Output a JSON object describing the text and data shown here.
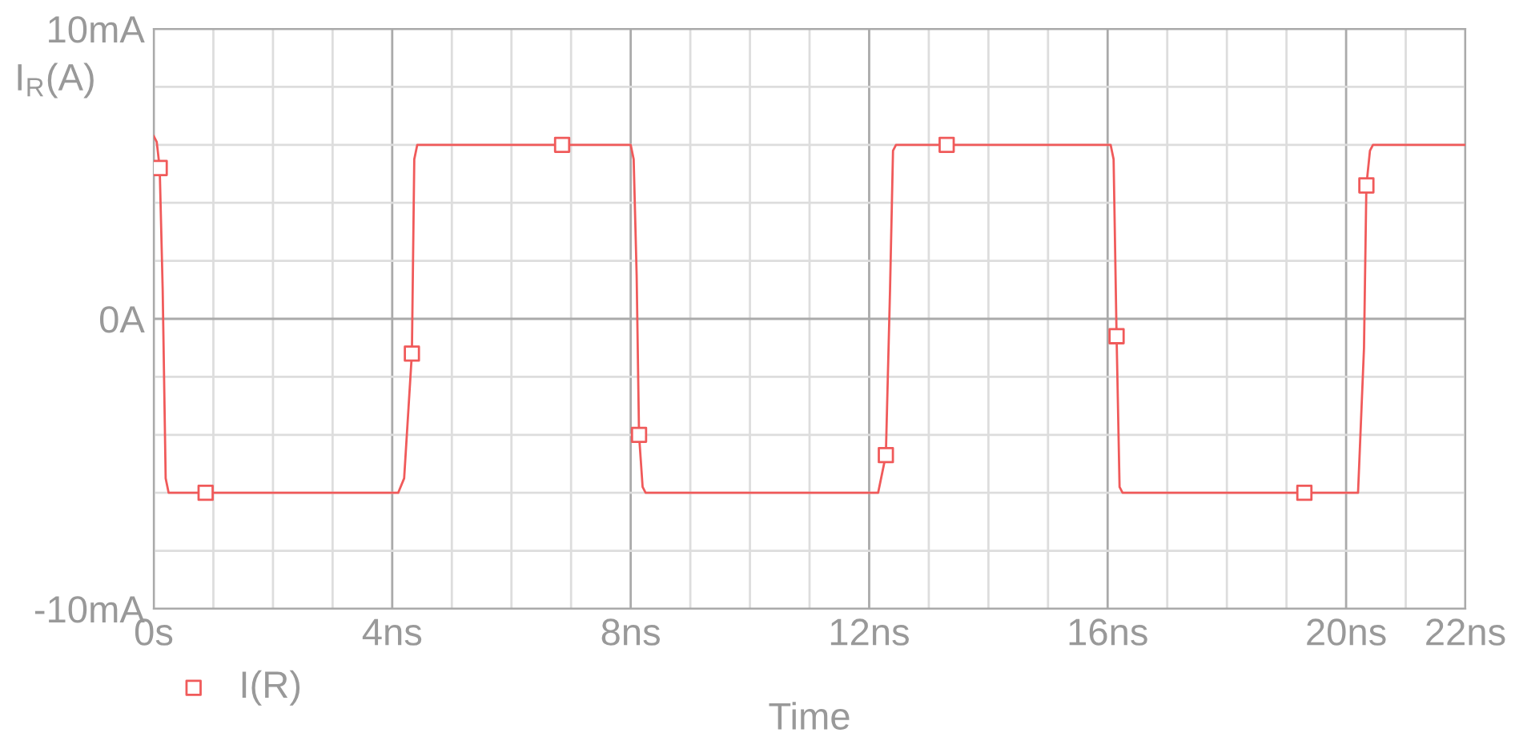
{
  "chart_data": {
    "type": "line",
    "xlabel": "Time",
    "ylabel": "I$_{R}$(A)",
    "xlim": [
      0,
      22
    ],
    "ylim": [
      -10,
      10
    ],
    "xticks": [
      {
        "value": 0,
        "label": "0s"
      },
      {
        "value": 1,
        "label": null
      },
      {
        "value": 2,
        "label": null
      },
      {
        "value": 3,
        "label": null
      },
      {
        "value": 4,
        "label": "4ns"
      },
      {
        "value": 5,
        "label": null
      },
      {
        "value": 6,
        "label": null
      },
      {
        "value": 7,
        "label": null
      },
      {
        "value": 8,
        "label": "8ns"
      },
      {
        "value": 9,
        "label": null
      },
      {
        "value": 10,
        "label": null
      },
      {
        "value": 11,
        "label": null
      },
      {
        "value": 12,
        "label": "12ns"
      },
      {
        "value": 13,
        "label": null
      },
      {
        "value": 14,
        "label": null
      },
      {
        "value": 15,
        "label": null
      },
      {
        "value": 16,
        "label": "16ns"
      },
      {
        "value": 17,
        "label": null
      },
      {
        "value": 18,
        "label": null
      },
      {
        "value": 19,
        "label": null
      },
      {
        "value": 20,
        "label": "20ns"
      },
      {
        "value": 21,
        "label": null
      },
      {
        "value": 22,
        "label": "22ns"
      }
    ],
    "yticks": [
      {
        "value": -10,
        "label": "-10mA"
      },
      {
        "value": -8,
        "label": null
      },
      {
        "value": -6,
        "label": null
      },
      {
        "value": -4,
        "label": null
      },
      {
        "value": -2,
        "label": null
      },
      {
        "value": 0,
        "label": "0A"
      },
      {
        "value": 2,
        "label": null
      },
      {
        "value": 4,
        "label": null
      },
      {
        "value": 6,
        "label": null
      },
      {
        "value": 8,
        "label": null
      },
      {
        "value": 10,
        "label": "10mA"
      }
    ],
    "grid": true,
    "legend": "bottom left",
    "series": [
      {
        "color": "#f05a5a",
        "marker": "none",
        "x": [
          0,
          0.05,
          0.1,
          0.15,
          0.2,
          0.25,
          4.1,
          4.2,
          4.33,
          4.37,
          4.42,
          8.0,
          8.05,
          8.1,
          8.14,
          8.2,
          8.25,
          12.15,
          12.2,
          12.28,
          12.35,
          12.4,
          12.45,
          16.05,
          16.1,
          16.15,
          16.2,
          16.25,
          20.2,
          20.3,
          20.34,
          20.4,
          20.45,
          22
        ],
        "values": [
          6.3,
          6.1,
          5.2,
          1,
          -5.5,
          -6,
          -6,
          -5.5,
          -1.2,
          5.5,
          6,
          6,
          5.5,
          1.5,
          -4,
          -5.8,
          -6,
          -6,
          -5.5,
          -4.7,
          1,
          5.8,
          6,
          6,
          5.5,
          -0.6,
          -5.8,
          -6,
          -6,
          -1,
          4.6,
          5.8,
          6,
          6
        ]
      },
      {
        "type": "scatter",
        "name": "I(R)",
        "color": "#f05a5a",
        "marker": "square",
        "x": [
          0.1,
          0.87,
          4.33,
          6.85,
          8.14,
          12.28,
          13.3,
          16.15,
          19.3,
          20.34
        ],
        "values": [
          5.2,
          -6,
          -1.2,
          6,
          -4,
          -4.7,
          6,
          -0.6,
          -6,
          4.6
        ]
      }
    ]
  }
}
